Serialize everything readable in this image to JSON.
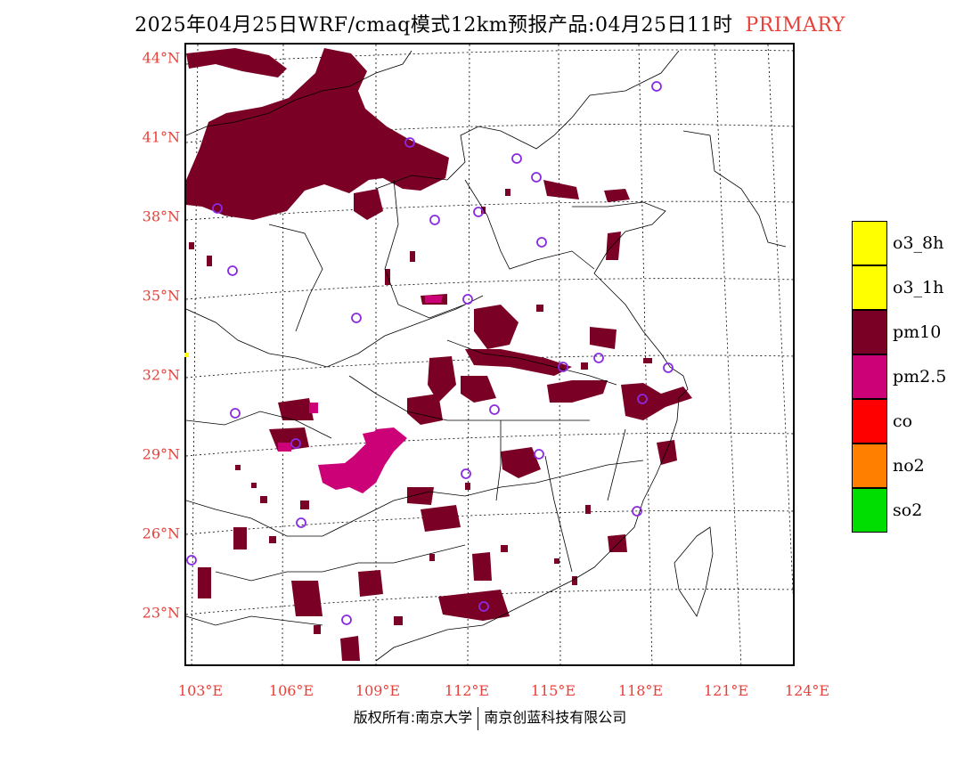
{
  "title": {
    "main": "2025年04月25日WRF/cmaq模式12km预报产品:04月25日11时",
    "tag": "PRIMARY"
  },
  "axes": {
    "lat_labels": [
      "44°N",
      "41°N",
      "38°N",
      "35°N",
      "32°N",
      "29°N",
      "26°N",
      "23°N"
    ],
    "lon_labels": [
      "103°E",
      "106°E",
      "109°E",
      "112°E",
      "115°E",
      "118°E",
      "121°E",
      "124°E"
    ]
  },
  "legend": {
    "items": [
      {
        "label": "o3_8h",
        "color": "#ffff00"
      },
      {
        "label": "o3_1h",
        "color": "#ffff00"
      },
      {
        "label": "pm10",
        "color": "#7a0026"
      },
      {
        "label": "pm2.5",
        "color": "#cc0077"
      },
      {
        "label": "co",
        "color": "#ff0000"
      },
      {
        "label": "no2",
        "color": "#ff7f00"
      },
      {
        "label": "so2",
        "color": "#00dd00"
      }
    ]
  },
  "colors": {
    "pm10": "#7a0026",
    "pm25": "#cc0077",
    "station": "#8a2be2",
    "label": "#e8413a"
  },
  "footer": {
    "left": "版权所有:南京大学",
    "right": "南京创蓝科技有限公司"
  }
}
